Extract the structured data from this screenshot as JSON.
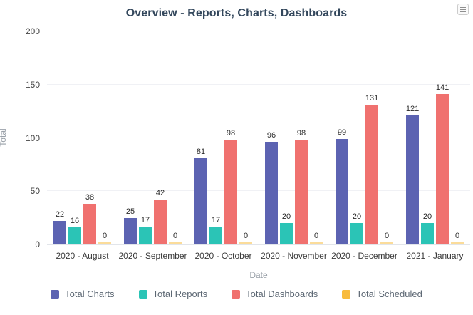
{
  "title": "Overview - Reports, Charts, Dashboards",
  "menu": {
    "icon": "hamburger-menu-icon"
  },
  "chart_data": {
    "type": "bar",
    "categories": [
      "2020 - August",
      "2020 - September",
      "2020 - October",
      "2020 - November",
      "2020 - December",
      "2021 - January"
    ],
    "series": [
      {
        "name": "Total Charts",
        "color": "#5c63b2",
        "values": [
          22,
          25,
          81,
          96,
          99,
          121
        ]
      },
      {
        "name": "Total Reports",
        "color": "#2bc4b6",
        "values": [
          16,
          17,
          17,
          20,
          20,
          20
        ]
      },
      {
        "name": "Total Dashboards",
        "color": "#f0716f",
        "values": [
          38,
          42,
          98,
          98,
          131,
          141
        ]
      },
      {
        "name": "Total Scheduled",
        "color": "#f8bb3d",
        "values": [
          0,
          0,
          0,
          0,
          0,
          0
        ]
      }
    ],
    "title": "Overview - Reports, Charts, Dashboards",
    "xlabel": "Date",
    "ylabel": "Total",
    "ylim": [
      0,
      200
    ],
    "yticks": [
      0,
      50,
      100,
      150,
      200
    ],
    "grid": true,
    "legend_position": "bottom",
    "value_labels": true
  },
  "colors": {
    "title_text": "#33475c",
    "axis_text": "#444444",
    "muted_text": "#9aa1a9",
    "gridline": "#f0f1f5",
    "baseline": "#e2e5ea",
    "zero_bar": "#fbdc9a"
  }
}
